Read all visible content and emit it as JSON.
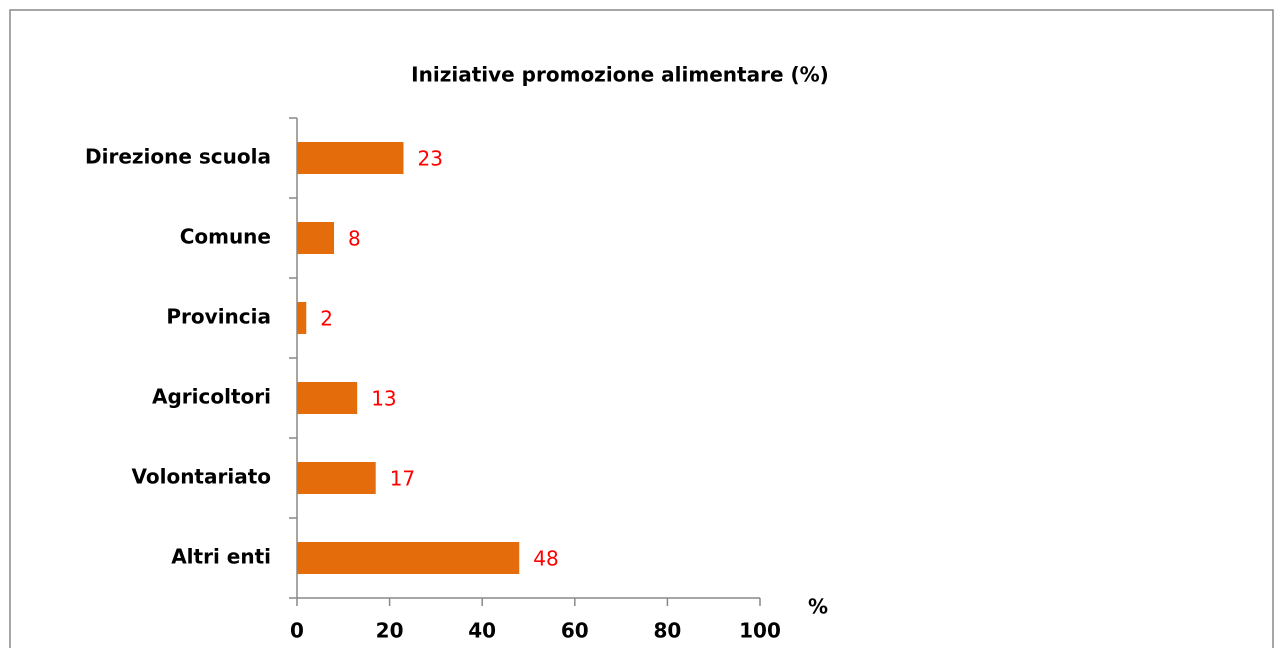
{
  "chart_data": {
    "type": "bar",
    "orientation": "horizontal",
    "title": "Iniziative promozione alimentare (%)",
    "categories": [
      "Direzione scuola",
      "Comune",
      "Provincia",
      "Agricoltori",
      "Volontariato",
      "Altri enti"
    ],
    "values": [
      23,
      8,
      2,
      13,
      17,
      48
    ],
    "color": "#e46c0a",
    "value_label_color": "#ff0000",
    "x_label": "%",
    "xlim": [
      0,
      100
    ],
    "xticks": [
      0,
      20,
      40,
      60,
      80,
      100
    ],
    "grid": false
  }
}
